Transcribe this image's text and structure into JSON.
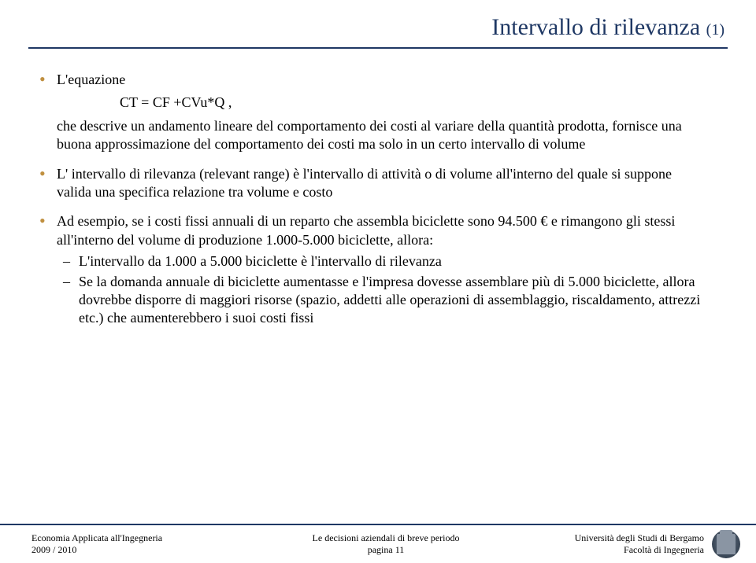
{
  "title": {
    "main": "Intervallo di rilevanza",
    "sub": "(1)",
    "color": "#1f3864",
    "fontsize_main": 30,
    "fontsize_sub": 20
  },
  "rule_color": "#1f3864",
  "bullet_color": "#c09040",
  "body_fontsize": 18,
  "content": {
    "b1_intro": "L'equazione",
    "equation": "CT = CF +CVu*Q  ,",
    "b1_cont": "che descrive un andamento lineare del comportamento dei costi al variare della quantità prodotta, fornisce una buona approssimazione del comportamento dei costi ma solo in un certo intervallo di volume",
    "b2": "L' intervallo di rilevanza (relevant range) è l'intervallo di attività o di volume all'interno del quale si suppone valida una specifica relazione tra volume e costo",
    "b3_intro": "Ad esempio, se i costi fissi annuali di un reparto che assembla biciclette sono 94.500 € e rimangono gli stessi all'interno del volume di produzione 1.000-5.000 biciclette, allora:",
    "b3_sub1": "L'intervallo da 1.000 a 5.000 biciclette è l'intervallo di rilevanza",
    "b3_sub2": "Se la domanda annuale di biciclette aumentasse e l'impresa dovesse assemblare più di 5.000 biciclette, allora dovrebbe disporre di maggiori risorse (spazio, addetti alle operazioni di assemblaggio, riscaldamento, attrezzi etc.) che aumenterebbero i suoi costi fissi"
  },
  "footer": {
    "left_line1": "Economia Applicata all'Ingegneria",
    "left_line2": "2009 / 2010",
    "mid_line1": "Le decisioni aziendali di breve periodo",
    "mid_line2": "pagina 11",
    "right_line1": "Università degli Studi di Bergamo",
    "right_line2": "Facoltà di Ingegneria",
    "fontsize": 12
  }
}
